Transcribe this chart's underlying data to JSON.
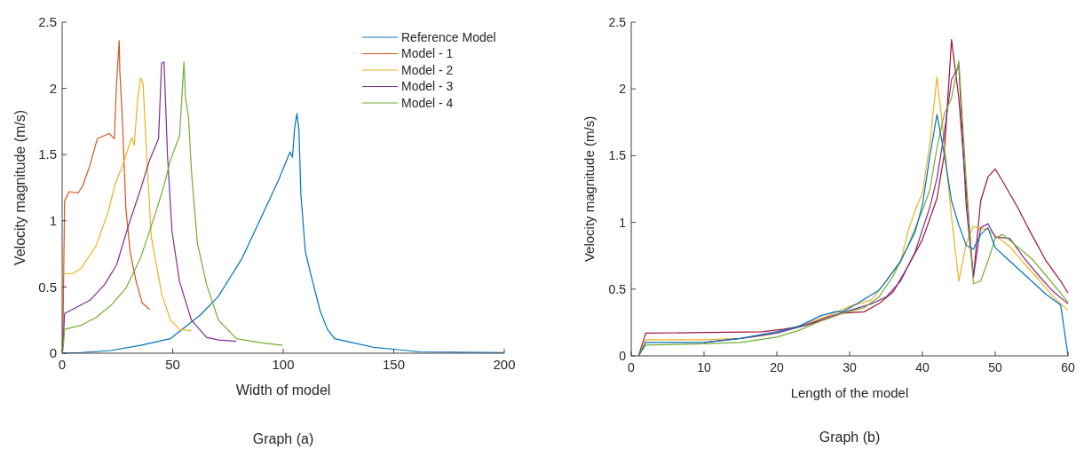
{
  "chart_data": [
    {
      "type": "line",
      "xlabel": "Width of model",
      "ylabel": "Velocity magnitude (m/s)",
      "xlim": [
        0,
        200
      ],
      "ylim": [
        0,
        2.5
      ],
      "xticks": [
        0,
        50,
        100,
        150,
        200
      ],
      "yticks": [
        0,
        0.5,
        1,
        1.5,
        2,
        2.5
      ],
      "legend": "top right",
      "annotations": [
        "Graph (a)"
      ],
      "series": [
        {
          "name": "Reference Model",
          "color": "#0072bd",
          "x": [
            0.4,
            8.5,
            22,
            35.5,
            49,
            62.6,
            70.7,
            81.5,
            89.6,
            97.7,
            103.1,
            104.2,
            105.1,
            106.2,
            107.1,
            108,
            110,
            112.7,
            116.7,
            120,
            123.3,
            131.3,
            140.7,
            150,
            162,
            200
          ],
          "values": [
            0,
            0.005,
            0.02,
            0.06,
            0.11,
            0.29,
            0.43,
            0.72,
            1.01,
            1.3,
            1.52,
            1.48,
            1.69,
            1.81,
            1.69,
            1.2,
            0.77,
            0.58,
            0.32,
            0.18,
            0.11,
            0.08,
            0.045,
            0.03,
            0.01,
            0.005
          ]
        },
        {
          "name": "Model - 1",
          "color": "#d95319",
          "x": [
            0.3,
            1.1,
            3.1,
            7.2,
            9.2,
            12.6,
            15.9,
            20,
            21.3,
            23.6,
            24.5,
            25.8,
            26.1,
            27.4,
            28.8,
            30.8,
            33.5,
            36.2,
            39.6
          ],
          "values": [
            0.05,
            1.15,
            1.22,
            1.21,
            1.26,
            1.42,
            1.62,
            1.65,
            1.66,
            1.62,
            2,
            2.36,
            2.13,
            1.71,
            1.1,
            0.76,
            0.54,
            0.38,
            0.33
          ]
        },
        {
          "name": "Model - 2",
          "color": "#edb120",
          "x": [
            0.4,
            4.5,
            8.5,
            15.3,
            20.7,
            24,
            27.4,
            31.5,
            32.6,
            34.2,
            35.5,
            36.6,
            38.2,
            40.3,
            42.3,
            45,
            49,
            53.1,
            58.5
          ],
          "values": [
            0.6,
            0.6,
            0.64,
            0.81,
            1.06,
            1.28,
            1.42,
            1.63,
            1.57,
            1.93,
            2.08,
            2.04,
            1.51,
            0.88,
            0.7,
            0.45,
            0.25,
            0.18,
            0.17
          ]
        },
        {
          "name": "Model - 3",
          "color": "#7e2f8e",
          "x": [
            0.4,
            1.1,
            5.8,
            12.6,
            19.3,
            24.7,
            30.1,
            35.5,
            39.6,
            43.6,
            45,
            46.1,
            47.7,
            49.7,
            53.1,
            58.5,
            65.3,
            70.7,
            78.8
          ],
          "values": [
            0.05,
            0.3,
            0.34,
            0.4,
            0.52,
            0.67,
            0.97,
            1.24,
            1.46,
            1.62,
            2.19,
            2.2,
            1.48,
            0.92,
            0.54,
            0.25,
            0.12,
            0.1,
            0.09
          ]
        },
        {
          "name": "Model - 4",
          "color": "#77ac30",
          "x": [
            0.4,
            1.1,
            8.5,
            15.3,
            22,
            28.8,
            35.5,
            42.3,
            46.3,
            49,
            53.1,
            54.4,
            55.1,
            55.8,
            57.2,
            58.5,
            61.2,
            65.3,
            70.7,
            78.8,
            89.6,
            99.7
          ],
          "values": [
            0.02,
            0.18,
            0.21,
            0.27,
            0.36,
            0.49,
            0.72,
            1.06,
            1.28,
            1.46,
            1.64,
            2,
            2.2,
            1.93,
            1.78,
            1.37,
            0.83,
            0.52,
            0.25,
            0.11,
            0.08,
            0.06
          ]
        }
      ]
    },
    {
      "type": "line",
      "xlabel": "Length of the model",
      "ylabel": "Velocity magnitude (m/s)",
      "xlim": [
        0,
        60
      ],
      "ylim": [
        0,
        2.5
      ],
      "xticks": [
        0,
        10,
        20,
        30,
        40,
        50,
        60
      ],
      "yticks": [
        0,
        0.5,
        1,
        1.5,
        2,
        2.5
      ],
      "annotations": [
        "Graph (b)"
      ],
      "series": [
        {
          "color": "#a2142f",
          "x": [
            1,
            2,
            18,
            21,
            24,
            27,
            29,
            32,
            34,
            36,
            38,
            40,
            42,
            43,
            44,
            45,
            46,
            47,
            48,
            49,
            50,
            51,
            53,
            55,
            57,
            59,
            60
          ],
          "values": [
            0,
            0.17,
            0.18,
            0.2,
            0.23,
            0.28,
            0.32,
            0.33,
            0.39,
            0.48,
            0.67,
            0.87,
            1.18,
            1.51,
            2.37,
            1.93,
            1.24,
            0.59,
            1.16,
            1.34,
            1.4,
            1.31,
            1.12,
            0.91,
            0.71,
            0.56,
            0.47
          ]
        },
        {
          "color": "#edb120",
          "x": [
            1,
            2,
            10,
            15,
            18,
            21,
            24,
            27,
            30,
            33,
            35,
            37,
            38,
            39,
            40,
            41,
            42,
            43,
            44,
            45,
            46,
            47,
            48,
            49,
            50,
            52,
            54,
            56,
            58,
            60
          ],
          "values": [
            0,
            0.12,
            0.12,
            0.13,
            0.15,
            0.19,
            0.24,
            0.3,
            0.37,
            0.42,
            0.56,
            0.7,
            0.93,
            1.09,
            1.22,
            1.58,
            2.09,
            1.6,
            1.04,
            0.56,
            0.84,
            0.97,
            0.95,
            0.95,
            0.9,
            0.82,
            0.69,
            0.57,
            0.44,
            0.34
          ]
        },
        {
          "color": "#7e2f8e",
          "x": [
            10,
            15,
            20,
            24,
            27,
            30,
            33,
            35,
            37,
            39,
            41,
            42,
            43,
            44,
            45,
            46,
            47,
            48,
            49,
            50,
            52,
            54,
            56,
            58,
            60
          ],
          "values": [
            0.1,
            0.13,
            0.17,
            0.23,
            0.29,
            0.34,
            0.39,
            0.44,
            0.56,
            0.78,
            1.11,
            1.33,
            1.67,
            2.07,
            2.17,
            1.13,
            0.59,
            0.96,
            0.99,
            0.89,
            0.88,
            0.73,
            0.6,
            0.48,
            0.39
          ]
        },
        {
          "color": "#77ac30",
          "x": [
            1,
            2,
            10,
            15,
            20,
            23,
            26,
            29,
            32,
            34,
            36,
            38,
            40,
            41,
            42,
            43,
            44,
            45,
            46,
            47,
            48,
            49,
            50,
            51,
            53,
            55,
            57,
            59,
            60
          ],
          "values": [
            0,
            0.08,
            0.09,
            0.1,
            0.14,
            0.19,
            0.26,
            0.32,
            0.36,
            0.44,
            0.6,
            0.82,
            1.09,
            1.24,
            1.56,
            1.81,
            1.93,
            2.21,
            1.33,
            0.54,
            0.56,
            0.71,
            0.88,
            0.91,
            0.82,
            0.73,
            0.6,
            0.47,
            0.4
          ]
        },
        {
          "color": "#0072bd",
          "x": [
            1,
            2,
            10,
            15,
            20,
            23,
            26,
            28,
            29,
            31,
            34,
            35,
            37,
            39,
            40,
            41,
            42,
            43,
            44,
            45,
            46,
            47,
            48,
            49,
            50,
            52,
            55,
            57,
            59,
            60
          ],
          "values": [
            0,
            0.1,
            0.1,
            0.13,
            0.18,
            0.22,
            0.3,
            0.33,
            0.33,
            0.39,
            0.49,
            0.56,
            0.71,
            0.93,
            1.13,
            1.49,
            1.81,
            1.51,
            1.16,
            0.98,
            0.83,
            0.8,
            0.91,
            0.96,
            0.81,
            0.71,
            0.56,
            0.46,
            0.38,
            0
          ]
        }
      ]
    }
  ]
}
